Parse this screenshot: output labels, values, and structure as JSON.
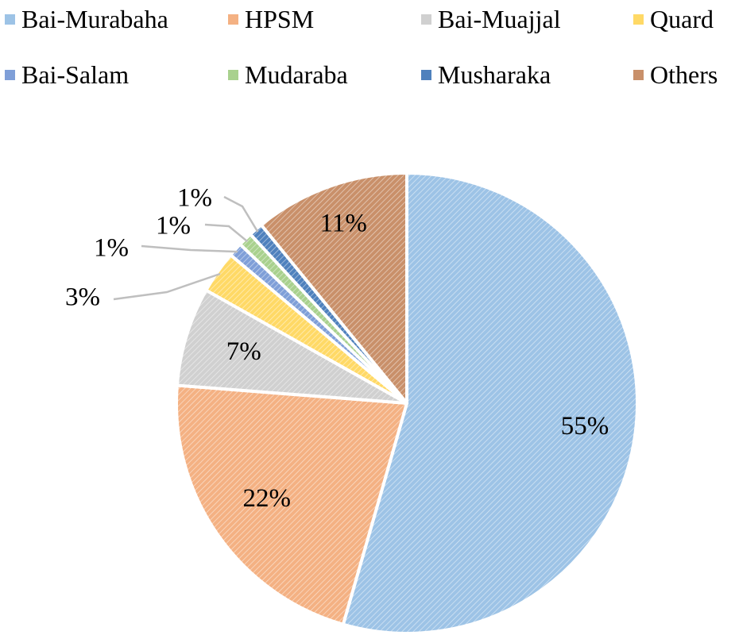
{
  "chart_data": {
    "type": "pie",
    "title": "",
    "legend_position": "top",
    "slices": [
      {
        "name": "Bai-Murabaha",
        "value": 55,
        "label": "55%",
        "color": "#9dc3e6"
      },
      {
        "name": "HPSM",
        "value": 22,
        "label": "22%",
        "color": "#f4b183"
      },
      {
        "name": "Bai-Muajjal",
        "value": 7,
        "label": "7%",
        "color": "#d0d0d0"
      },
      {
        "name": "Quard",
        "value": 3,
        "label": "3%",
        "color": "#ffd966"
      },
      {
        "name": "Bai-Salam",
        "value": 1,
        "label": "1%",
        "color": "#7f9fd8"
      },
      {
        "name": "Mudaraba",
        "value": 1,
        "label": "1%",
        "color": "#a9d18e"
      },
      {
        "name": "Musharaka",
        "value": 1,
        "label": "1%",
        "color": "#4f81bd"
      },
      {
        "name": "Others",
        "value": 11,
        "label": "11%",
        "color": "#c9906a"
      }
    ]
  }
}
